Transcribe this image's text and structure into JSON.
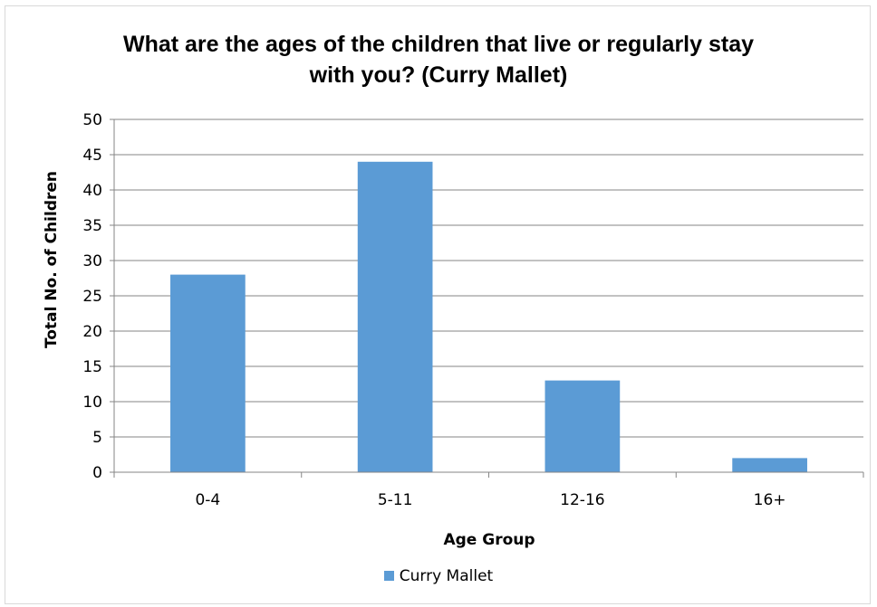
{
  "chart_data": {
    "type": "bar",
    "title": "What are the ages of the children that live or regularly stay with you? (Curry Mallet)",
    "xlabel": "Age Group",
    "ylabel": "Total No. of Children",
    "categories": [
      "0-4",
      "5-11",
      "12-16",
      "16+"
    ],
    "series": [
      {
        "name": "Curry Mallet",
        "values": [
          28,
          44,
          13,
          2
        ]
      }
    ],
    "ylim": [
      0,
      50
    ],
    "yticks": [
      0,
      5,
      10,
      15,
      20,
      25,
      30,
      35,
      40,
      45,
      50
    ],
    "grid": true,
    "legend_position": "bottom",
    "colors": {
      "bar": "#5b9bd5",
      "grid": "#868686",
      "axis": "#868686"
    }
  }
}
